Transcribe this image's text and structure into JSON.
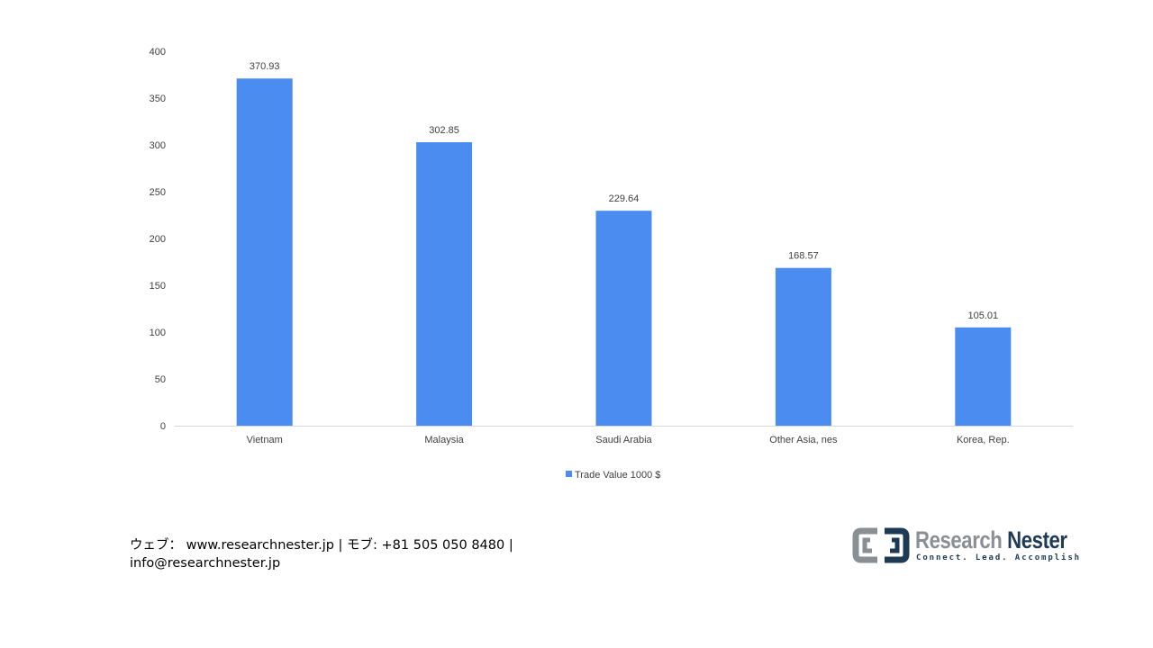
{
  "chart_data": {
    "type": "bar",
    "categories": [
      "Vietnam",
      "Malaysia",
      "Saudi Arabia",
      "Other Asia, nes",
      "Korea, Rep."
    ],
    "series": [
      {
        "name": "Trade Value 1000 $",
        "values": [
          370.93,
          302.85,
          229.64,
          168.57,
          105.01
        ],
        "data_labels": [
          "370.93",
          "302.85",
          "229.64",
          "168.57",
          "105.01"
        ]
      }
    ],
    "ylim": [
      0,
      400
    ],
    "yticks": [
      0,
      50,
      100,
      150,
      200,
      250,
      300,
      350,
      400
    ],
    "grid": false,
    "legend": "bottom-center",
    "bar_color": "#4a8cf0",
    "axis_color": "#d9d9d9"
  },
  "footer": {
    "line1": "ウェブ：  www.researchnester.jp  | モブ: +81 505 050 8480 |",
    "line2": "info@researchnester.jp"
  },
  "logo": {
    "name_part1": "Research",
    "name_part2": "Nester",
    "tagline": "Connect. Lead. Accomplish",
    "colors": {
      "gray": "#8a8f94",
      "navy": "#1f3a55"
    }
  }
}
